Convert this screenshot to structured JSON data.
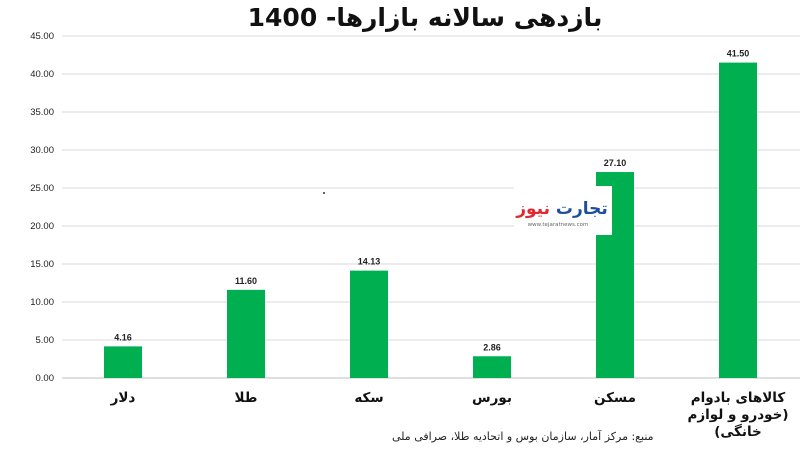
{
  "chart_data": {
    "type": "bar",
    "title": "بازدهی سالانه بازارها- 1400",
    "categories": [
      "دلار",
      "طلا",
      "سکه",
      "بورس",
      "مسکن",
      "کالاهای بادوام (خودرو و لوازم خانگی)"
    ],
    "category_lines": [
      [
        "دلار"
      ],
      [
        "طلا"
      ],
      [
        "سکه"
      ],
      [
        "بورس"
      ],
      [
        "مسکن"
      ],
      [
        "کالاهای بادوام",
        "(خودرو و لوازم",
        "خانگی)"
      ]
    ],
    "values": [
      4.16,
      11.6,
      14.13,
      2.86,
      27.1,
      41.5
    ],
    "value_labels": [
      "4.16",
      "11.60",
      "14.13",
      "2.86",
      "27.10",
      "41.50"
    ],
    "yticks": [
      "0.00",
      "5.00",
      "10.00",
      "15.00",
      "20.00",
      "25.00",
      "30.00",
      "35.00",
      "40.00",
      "45.00"
    ],
    "ylim": [
      0,
      45
    ],
    "grid": true,
    "bar_color": "#00b050",
    "xlabel": "",
    "ylabel": ""
  },
  "source_note": "منبع: مرکز آمار، سازمان بوس و اتحادیه طلا، صرافی ملی",
  "watermark": {
    "brand": "تجارت نیوز",
    "url": "www.tejaratnews.com",
    "brand_color_primary": "#1f4e9c",
    "brand_color_accent": "#e0262f"
  }
}
